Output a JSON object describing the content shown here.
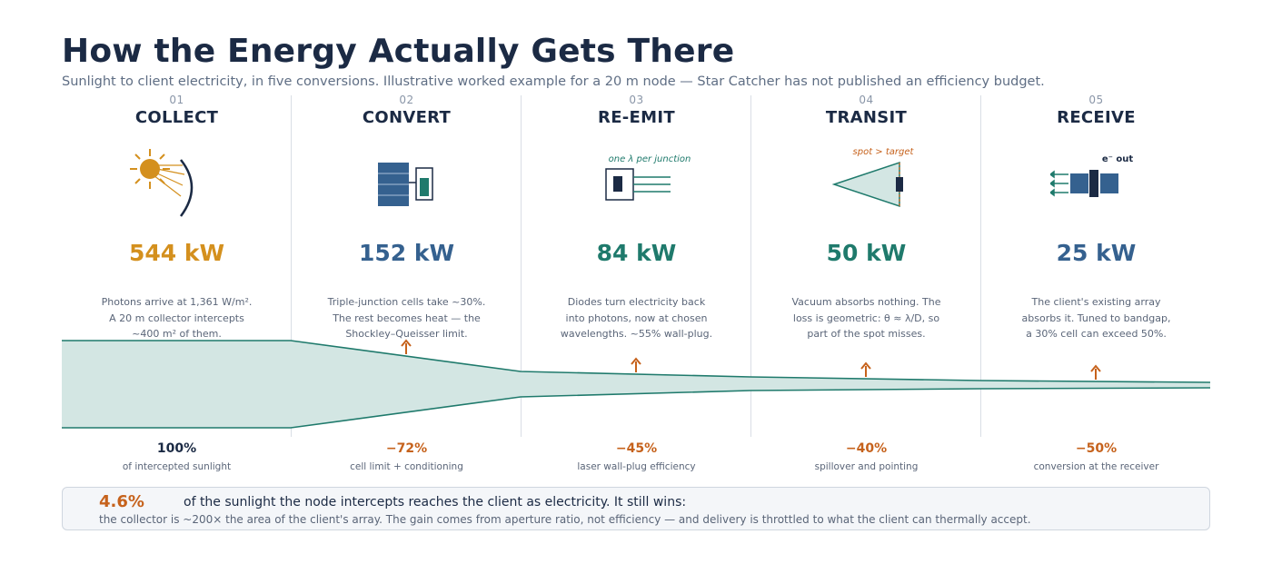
{
  "title": "How the Energy Actually Gets There",
  "subtitle": "Sunlight to client electricity, in five conversions. Illustrative worked example for a 20 m node — Star Catcher has not published an efficiency budget.",
  "colors": {
    "gold": "#d4901e",
    "blue": "#35618f",
    "teal": "#1f7a6c",
    "loss": "#c6621c",
    "navy": "#1b2a44",
    "flow_fill": "#d3e6e3"
  },
  "stages": [
    {
      "num": "01",
      "name": "COLLECT",
      "power": "544 kW",
      "power_color": "#d4901e",
      "icon": "sun-collector-icon",
      "desc": [
        "Photons arrive at 1,361 W/m².",
        "A 20 m collector intercepts",
        "~400 m² of them."
      ],
      "loss_value": "100%",
      "loss_caption": "of intercepted sunlight",
      "loss_color": "#1b2a44"
    },
    {
      "num": "02",
      "name": "CONVERT",
      "power": "152 kW",
      "power_color": "#35618f",
      "icon": "solar-cell-icon",
      "desc": [
        "Triple-junction cells take ~30%.",
        "The rest becomes heat — the",
        "Shockley–Queisser limit."
      ],
      "loss_value": "−72%",
      "loss_caption": "cell limit + conditioning",
      "loss_color": "#c6621c"
    },
    {
      "num": "03",
      "name": "RE-EMIT",
      "power": "84 kW",
      "power_color": "#1f7a6c",
      "icon": "laser-diode-icon",
      "icon_label": "one λ per junction",
      "desc": [
        "Diodes turn electricity back",
        "into photons, now at chosen",
        "wavelengths. ~55% wall-plug."
      ],
      "loss_value": "−45%",
      "loss_caption": "laser wall-plug efficiency",
      "loss_color": "#c6621c"
    },
    {
      "num": "04",
      "name": "TRANSIT",
      "power": "50 kW",
      "power_color": "#1f7a6c",
      "icon": "beam-spot-icon",
      "icon_label": "spot > target",
      "desc": [
        "Vacuum absorbs nothing. The",
        "loss is geometric: θ ≈ λ/D, so",
        "part of the spot misses."
      ],
      "loss_value": "−40%",
      "loss_caption": "spillover and pointing",
      "loss_color": "#c6621c"
    },
    {
      "num": "05",
      "name": "RECEIVE",
      "power": "25 kW",
      "power_color": "#35618f",
      "icon": "receiver-satellite-icon",
      "icon_label": "e⁻ out",
      "desc": [
        "The client's existing array",
        "absorbs it. Tuned to bandgap,",
        "a 30% cell can exceed 50%."
      ],
      "loss_value": "−50%",
      "loss_caption": "conversion at the receiver",
      "loss_color": "#c6621c"
    }
  ],
  "summary": {
    "percent": "4.6%",
    "headline": "of the sunlight the node intercepts reaches the client as electricity. It still wins:",
    "body": "the collector is ~200× the area of the client's array. The gain comes from aperture ratio, not efficiency — and delivery is throttled to what the client can thermally accept."
  }
}
